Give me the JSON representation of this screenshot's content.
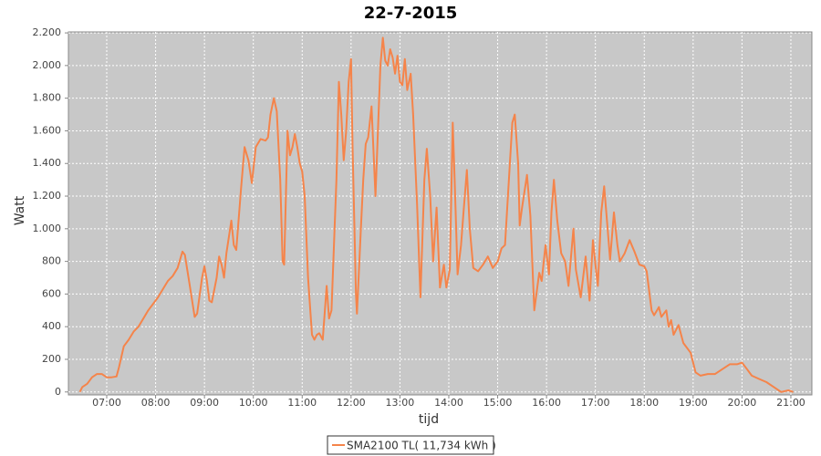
{
  "chart_data": {
    "type": "line",
    "title": "22-7-2015",
    "x_label": "tijd",
    "y_label": "Watt",
    "x": [
      6.45,
      6.5,
      6.6,
      6.7,
      6.8,
      6.9,
      7.0,
      7.1,
      7.2,
      7.25,
      7.35,
      7.45,
      7.55,
      7.65,
      7.75,
      7.85,
      7.95,
      8.05,
      8.15,
      8.25,
      8.35,
      8.45,
      8.55,
      8.6,
      8.7,
      8.8,
      8.85,
      8.95,
      9.0,
      9.05,
      9.1,
      9.15,
      9.25,
      9.3,
      9.35,
      9.4,
      9.45,
      9.55,
      9.6,
      9.65,
      9.75,
      9.82,
      9.9,
      9.97,
      10.05,
      10.15,
      10.25,
      10.3,
      10.35,
      10.42,
      10.48,
      10.55,
      10.6,
      10.63,
      10.7,
      10.75,
      10.8,
      10.85,
      10.9,
      10.95,
      11.0,
      11.05,
      11.12,
      11.2,
      11.25,
      11.3,
      11.35,
      11.42,
      11.5,
      11.55,
      11.6,
      11.7,
      11.75,
      11.8,
      11.85,
      11.9,
      11.95,
      12.0,
      12.03,
      12.1,
      12.12,
      12.2,
      12.25,
      12.3,
      12.35,
      12.42,
      12.5,
      12.55,
      12.6,
      12.65,
      12.7,
      12.75,
      12.8,
      12.85,
      12.9,
      12.95,
      13.0,
      13.05,
      13.1,
      13.15,
      13.22,
      13.27,
      13.35,
      13.42,
      13.5,
      13.55,
      13.62,
      13.68,
      13.75,
      13.82,
      13.9,
      13.95,
      14.02,
      14.05,
      14.08,
      14.12,
      14.18,
      14.25,
      14.3,
      14.37,
      14.43,
      14.5,
      14.6,
      14.7,
      14.8,
      14.9,
      15.0,
      15.08,
      15.15,
      15.3,
      15.35,
      15.42,
      15.45,
      15.5,
      15.6,
      15.67,
      15.75,
      15.85,
      15.9,
      15.98,
      16.05,
      16.1,
      16.15,
      16.22,
      16.3,
      16.38,
      16.45,
      16.55,
      16.6,
      16.7,
      16.8,
      16.88,
      16.95,
      17.0,
      17.05,
      17.12,
      17.18,
      17.25,
      17.3,
      17.38,
      17.45,
      17.5,
      17.6,
      17.7,
      17.8,
      17.9,
      18.0,
      18.05,
      18.15,
      18.2,
      18.3,
      18.35,
      18.45,
      18.5,
      18.55,
      18.6,
      18.7,
      18.8,
      18.95,
      19.05,
      19.15,
      19.3,
      19.45,
      19.6,
      19.75,
      19.9,
      20.0,
      20.1,
      20.2,
      20.35,
      20.5,
      20.7,
      20.8,
      20.95,
      21.05
    ],
    "series": [
      {
        "name": "SMA2100 TL( 11,734 kWh )",
        "color": "#f5844a",
        "values": [
          0,
          30,
          50,
          90,
          110,
          110,
          90,
          90,
          95,
          150,
          280,
          320,
          370,
          400,
          450,
          500,
          540,
          580,
          630,
          680,
          710,
          760,
          860,
          840,
          650,
          460,
          480,
          700,
          770,
          680,
          560,
          550,
          700,
          830,
          780,
          700,
          850,
          1050,
          900,
          870,
          1250,
          1500,
          1420,
          1280,
          1500,
          1550,
          1540,
          1560,
          1700,
          1800,
          1720,
          1300,
          800,
          780,
          1600,
          1450,
          1500,
          1580,
          1500,
          1400,
          1350,
          1200,
          700,
          350,
          320,
          350,
          360,
          320,
          650,
          450,
          500,
          1300,
          1900,
          1700,
          1420,
          1600,
          1900,
          2040,
          1500,
          600,
          480,
          1000,
          1300,
          1520,
          1560,
          1750,
          1200,
          1600,
          2000,
          2170,
          2030,
          2000,
          2100,
          2050,
          1950,
          2060,
          1900,
          1880,
          2040,
          1850,
          1950,
          1700,
          1150,
          580,
          1300,
          1490,
          1200,
          800,
          1130,
          640,
          780,
          640,
          750,
          1200,
          1650,
          1300,
          720,
          900,
          1100,
          1360,
          1000,
          760,
          740,
          780,
          830,
          760,
          800,
          880,
          900,
          1650,
          1700,
          1400,
          1020,
          1130,
          1330,
          1080,
          500,
          730,
          680,
          900,
          720,
          1100,
          1300,
          1050,
          850,
          800,
          650,
          1000,
          750,
          580,
          830,
          560,
          930,
          780,
          650,
          1100,
          1260,
          1000,
          810,
          1100,
          900,
          800,
          850,
          930,
          860,
          780,
          770,
          740,
          500,
          470,
          520,
          460,
          500,
          400,
          440,
          350,
          410,
          300,
          240,
          120,
          100,
          110,
          110,
          140,
          170,
          170,
          180,
          140,
          100,
          80,
          60,
          20,
          0,
          10,
          0
        ]
      }
    ],
    "xlim": [
      6.216,
      21.43
    ],
    "ylim": [
      -18,
      2206
    ],
    "xticks": [
      {
        "value": 7,
        "label": "07:00"
      },
      {
        "value": 8,
        "label": "08:00"
      },
      {
        "value": 9,
        "label": "09:00"
      },
      {
        "value": 10,
        "label": "10:00"
      },
      {
        "value": 11,
        "label": "11:00"
      },
      {
        "value": 12,
        "label": "12:00"
      },
      {
        "value": 13,
        "label": "13:00"
      },
      {
        "value": 14,
        "label": "14:00"
      },
      {
        "value": 15,
        "label": "15:00"
      },
      {
        "value": 16,
        "label": "16:00"
      },
      {
        "value": 17,
        "label": "17:00"
      },
      {
        "value": 18,
        "label": "18:00"
      },
      {
        "value": 19,
        "label": "19:00"
      },
      {
        "value": 20,
        "label": "20:00"
      },
      {
        "value": 21,
        "label": "21:00"
      }
    ],
    "yticks": [
      0,
      200,
      400,
      600,
      800,
      {
        "value": 1000,
        "label": "1.000"
      },
      {
        "value": 1200,
        "label": "1.200"
      },
      {
        "value": 1400,
        "label": "1.400"
      },
      {
        "value": 1600,
        "label": "1.600"
      },
      {
        "value": 1800,
        "label": "1.800"
      },
      {
        "value": 2000,
        "label": "2.000"
      },
      {
        "value": 2200,
        "label": "2.200"
      }
    ],
    "grid": true,
    "legend": "bottom",
    "plot_background": "#c8c8c8"
  }
}
